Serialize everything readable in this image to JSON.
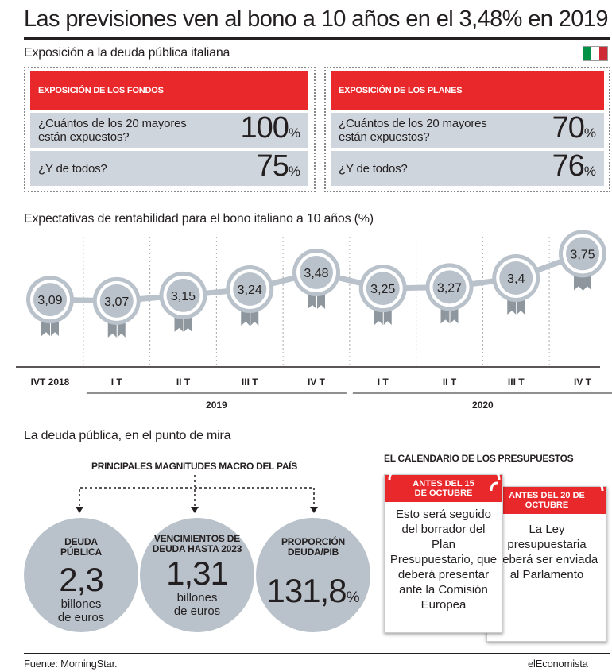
{
  "title": "Las previsiones ven al bono a 10 años en el 3,48% en 2019",
  "exposure": {
    "heading": "Exposición a la deuda pública italiana",
    "flag_colors": [
      "#009246",
      "#ffffff",
      "#ce2b37"
    ],
    "funds": {
      "header": "EXPOSICIÓN DE LOS FONDOS",
      "q1": "¿Cuántos de los 20 mayores están expuestos?",
      "v1": "100",
      "q2": "¿Y de todos?",
      "v2": "75"
    },
    "plans": {
      "header": "EXPOSICIÓN DE LOS PLANES",
      "q1": "¿Cuántos de los 20 mayores están expuestos?",
      "v1": "70",
      "q2": "¿Y de todos?",
      "v2": "76"
    },
    "pct": "%"
  },
  "chart_data": {
    "type": "line",
    "title": "Expectativas de rentabilidad para el bono italiano a 10 años (%)",
    "categories": [
      "IVT 2018",
      "I T",
      "II T",
      "III T",
      "IV T",
      "I T",
      "II T",
      "III T",
      "IV T"
    ],
    "values": [
      3.09,
      3.07,
      3.15,
      3.24,
      3.48,
      3.25,
      3.27,
      3.4,
      3.75
    ],
    "value_labels": [
      "3,09",
      "3,07",
      "3,15",
      "3,24",
      "3,48",
      "3,25",
      "3,27",
      "3,4",
      "3,75"
    ],
    "year_groups": [
      {
        "label": "2019",
        "from": 1,
        "to": 4
      },
      {
        "label": "2020",
        "from": 5,
        "to": 8
      }
    ],
    "line_color": "#b9c2ca",
    "medal_color": "#b9c2ca",
    "ribbon_color": "#8f979e"
  },
  "debt": {
    "heading": "La deuda pública, en el punto de mira",
    "macro_heading": "PRINCIPALES MAGNITUDES MACRO DEL PAÍS",
    "circles": [
      {
        "label": "DEUDA PÚBLICA",
        "value": "2,3",
        "suffix": "",
        "unit": "billones de euros"
      },
      {
        "label": "VENCIMIENTOS DE DEUDA HASTA 2023",
        "value": "1,31",
        "suffix": "",
        "unit": "billones de euros"
      },
      {
        "label": "PROPORCIÓN DEUDA/PIB",
        "value": "131,8",
        "suffix": "%",
        "unit": ""
      }
    ],
    "calendar_heading": "EL CALENDARIO DE LOS PRESUPUESTOS",
    "cards": [
      {
        "header": "ANTES DEL 15 DE OCTUBRE",
        "body": "Esto será seguido del borrador del Plan Presupuestario, que deberá presentar ante la Comisión Europea"
      },
      {
        "header": "ANTES DEL 20 DE OCTUBRE",
        "body": "La Ley presupuestaria deberá ser enviada al Parlamento"
      }
    ]
  },
  "footer": {
    "source": "Fuente: MorningStar.",
    "brand": "elEconomista"
  },
  "colors": {
    "accent_red": "#e8282b",
    "panel_gray": "#cfd5dc",
    "circle_gray": "#b9c2ca"
  }
}
